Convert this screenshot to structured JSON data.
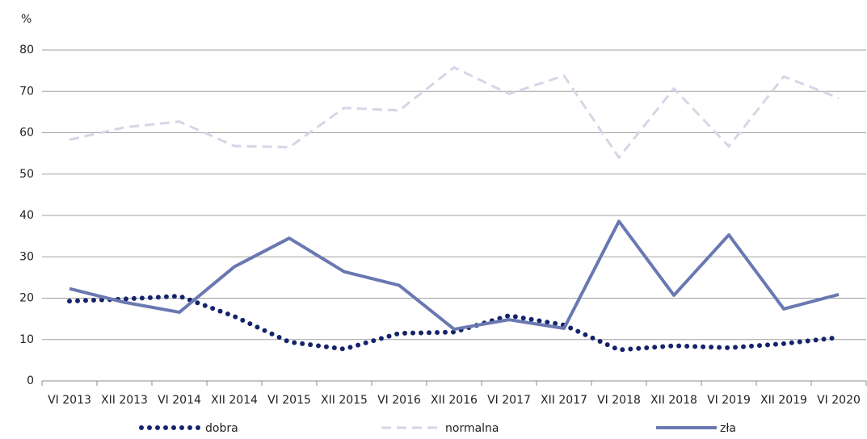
{
  "chart_data": {
    "type": "line",
    "y_label": "%",
    "categories": [
      "VI 2013",
      "XII 2013",
      "VI 2014",
      "XII 2014",
      "VI 2015",
      "XII 2015",
      "VI 2016",
      "XII 2016",
      "VI 2017",
      "XII 2017",
      "VI 2018",
      "XII 2018",
      "VI 2019",
      "XII 2019",
      "VI 2020"
    ],
    "series": [
      {
        "name": "dobra",
        "color": "#14246b",
        "style": "dotted",
        "values": [
          19.3,
          19.8,
          20.5,
          15.6,
          9.4,
          7.7,
          11.5,
          11.8,
          15.8,
          13.5,
          7.5,
          8.5,
          8.0,
          9.0,
          10.5
        ]
      },
      {
        "name": "normalna",
        "color": "#d3d7e6",
        "style": "dashed",
        "values": [
          58.3,
          61.3,
          62.7,
          56.8,
          56.5,
          66.0,
          65.4,
          75.8,
          69.4,
          73.8,
          54.0,
          70.7,
          56.7,
          73.6,
          68.4
        ]
      },
      {
        "name": "zła",
        "color": "#6a78b2",
        "style": "solid",
        "values": [
          22.3,
          19.0,
          16.6,
          27.6,
          34.5,
          26.4,
          23.1,
          12.5,
          14.8,
          12.7,
          38.6,
          20.7,
          35.3,
          17.4,
          20.9
        ]
      }
    ],
    "ylim": [
      0,
      80
    ],
    "yticks": [
      0,
      10,
      20,
      30,
      40,
      50,
      60,
      70,
      80
    ],
    "grid": true
  }
}
